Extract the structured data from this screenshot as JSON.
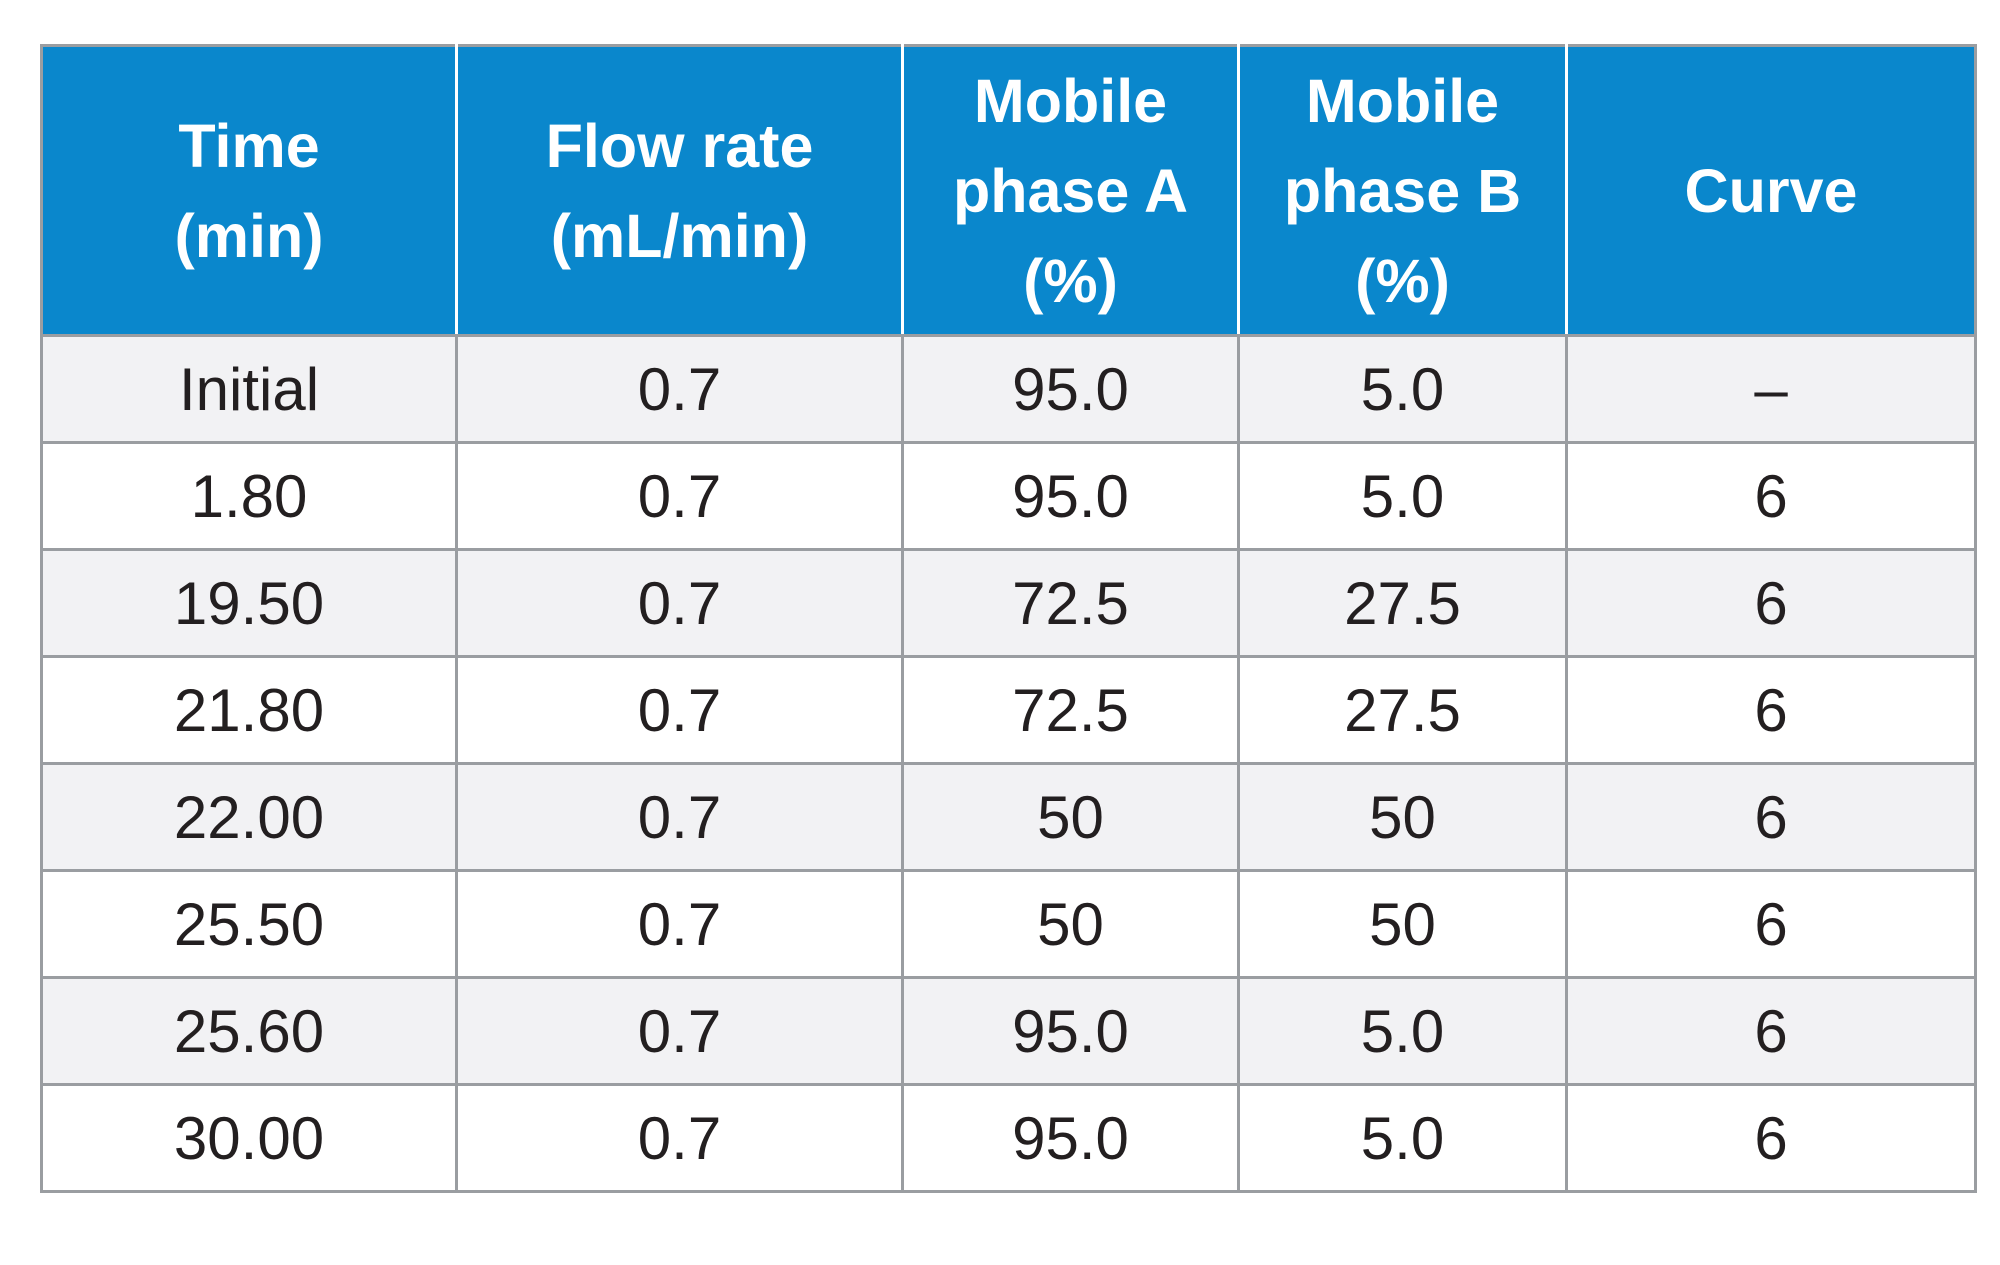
{
  "table": {
    "headers": [
      [
        "Time",
        "(min)"
      ],
      [
        "Flow rate",
        "(mL/min)"
      ],
      [
        "Mobile",
        "phase A",
        "(%)"
      ],
      [
        "Mobile",
        "phase B",
        "(%)"
      ],
      [
        "Curve"
      ]
    ],
    "rows": [
      [
        "Initial",
        "0.7",
        "95.0",
        "5.0",
        "–"
      ],
      [
        "1.80",
        "0.7",
        "95.0",
        "5.0",
        "6"
      ],
      [
        "19.50",
        "0.7",
        "72.5",
        "27.5",
        "6"
      ],
      [
        "21.80",
        "0.7",
        "72.5",
        "27.5",
        "6"
      ],
      [
        "22.00",
        "0.7",
        "50",
        "50",
        "6"
      ],
      [
        "25.50",
        "0.7",
        "50",
        "50",
        "6"
      ],
      [
        "25.60",
        "0.7",
        "95.0",
        "5.0",
        "6"
      ],
      [
        "30.00",
        "0.7",
        "95.0",
        "5.0",
        "6"
      ]
    ],
    "colors": {
      "header_bg": "#0a87cc",
      "header_text": "#ffffff",
      "row_alt_bg": "#f2f2f4",
      "row_bg": "#ffffff",
      "grid": "#9a9da1",
      "body_text": "#231f20"
    }
  }
}
